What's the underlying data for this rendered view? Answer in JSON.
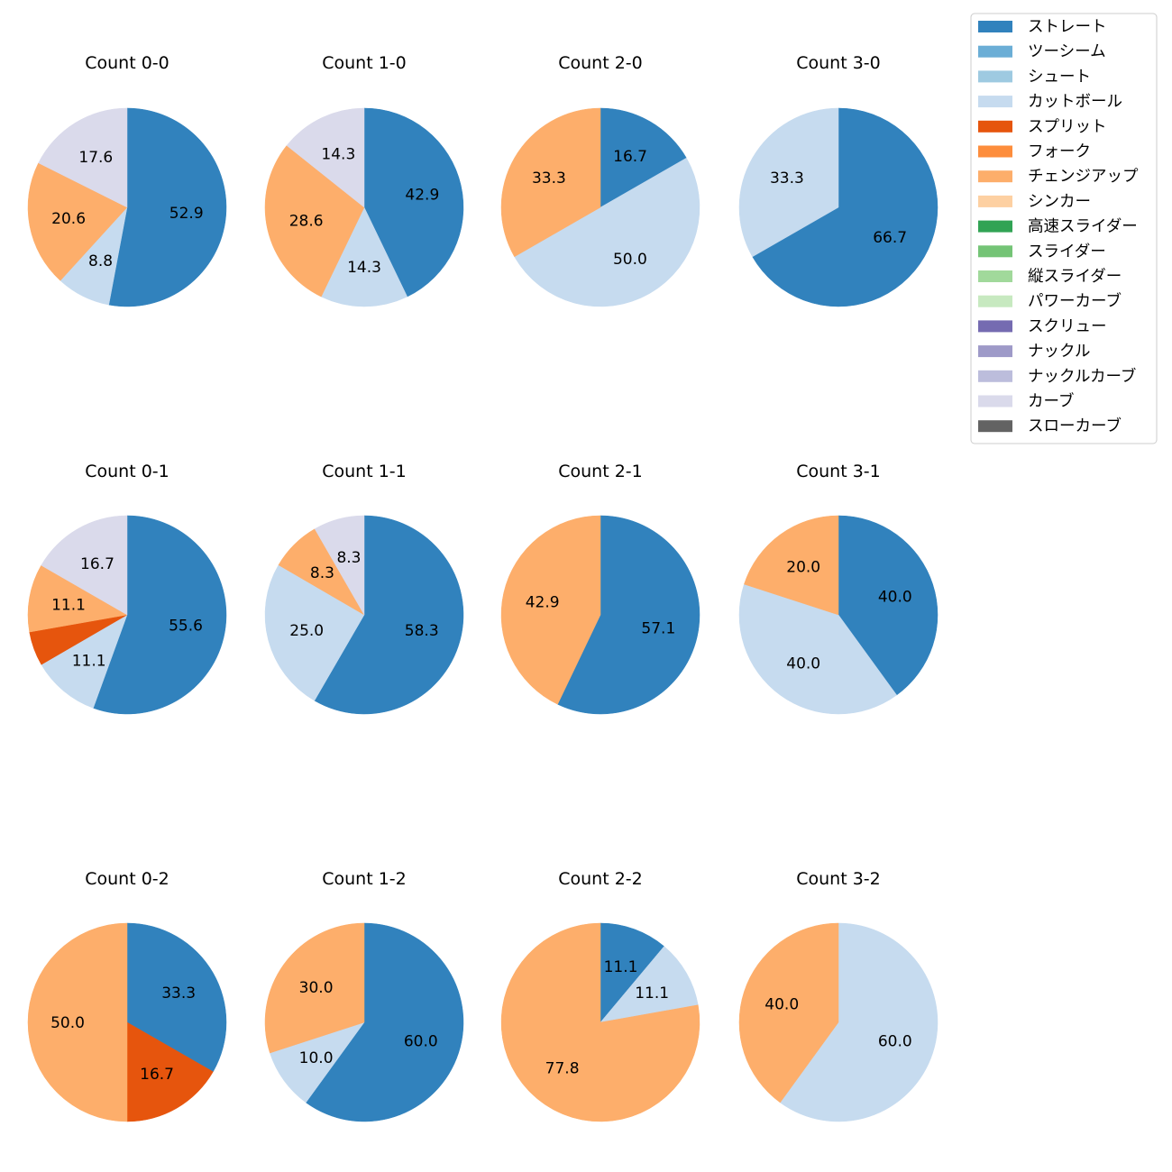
{
  "pitch_types": [
    {
      "name": "ストレート",
      "color": "#3182bd"
    },
    {
      "name": "ツーシーム",
      "color": "#6baed6"
    },
    {
      "name": "シュート",
      "color": "#9ecae1"
    },
    {
      "name": "カットボール",
      "color": "#c6dbef"
    },
    {
      "name": "スプリット",
      "color": "#e6550d"
    },
    {
      "name": "フォーク",
      "color": "#fd8d3c"
    },
    {
      "name": "チェンジアップ",
      "color": "#fdae6b"
    },
    {
      "name": "シンカー",
      "color": "#fdd0a2"
    },
    {
      "name": "高速スライダー",
      "color": "#31a354"
    },
    {
      "name": "スライダー",
      "color": "#74c476"
    },
    {
      "name": "縦スライダー",
      "color": "#a1d99b"
    },
    {
      "name": "パワーカーブ",
      "color": "#c7e9c0"
    },
    {
      "name": "スクリュー",
      "color": "#756bb1"
    },
    {
      "name": "ナックル",
      "color": "#9e9ac8"
    },
    {
      "name": "ナックルカーブ",
      "color": "#bcbddc"
    },
    {
      "name": "カーブ",
      "color": "#dadaeb"
    },
    {
      "name": "スローカーブ",
      "color": "#636363"
    }
  ],
  "chart_data": [
    {
      "type": "pie",
      "title": "Count 0-0",
      "slices": [
        {
          "pitch": "ストレート",
          "value": 52.9
        },
        {
          "pitch": "カットボール",
          "value": 8.8
        },
        {
          "pitch": "チェンジアップ",
          "value": 20.6
        },
        {
          "pitch": "カーブ",
          "value": 17.6
        }
      ]
    },
    {
      "type": "pie",
      "title": "Count 1-0",
      "slices": [
        {
          "pitch": "ストレート",
          "value": 42.9
        },
        {
          "pitch": "カットボール",
          "value": 14.3
        },
        {
          "pitch": "チェンジアップ",
          "value": 28.6
        },
        {
          "pitch": "カーブ",
          "value": 14.3
        }
      ]
    },
    {
      "type": "pie",
      "title": "Count 2-0",
      "slices": [
        {
          "pitch": "ストレート",
          "value": 16.7
        },
        {
          "pitch": "カットボール",
          "value": 50.0
        },
        {
          "pitch": "チェンジアップ",
          "value": 33.3
        }
      ]
    },
    {
      "type": "pie",
      "title": "Count 3-0",
      "slices": [
        {
          "pitch": "ストレート",
          "value": 66.7
        },
        {
          "pitch": "カットボール",
          "value": 33.3
        }
      ]
    },
    {
      "type": "pie",
      "title": "Count 0-1",
      "slices": [
        {
          "pitch": "ストレート",
          "value": 55.6
        },
        {
          "pitch": "カットボール",
          "value": 11.1
        },
        {
          "pitch": "スプリット",
          "value": 5.6,
          "label": ""
        },
        {
          "pitch": "チェンジアップ",
          "value": 11.1
        },
        {
          "pitch": "カーブ",
          "value": 16.7
        }
      ]
    },
    {
      "type": "pie",
      "title": "Count 1-1",
      "slices": [
        {
          "pitch": "ストレート",
          "value": 58.3
        },
        {
          "pitch": "カットボール",
          "value": 25.0
        },
        {
          "pitch": "チェンジアップ",
          "value": 8.3
        },
        {
          "pitch": "カーブ",
          "value": 8.3
        }
      ]
    },
    {
      "type": "pie",
      "title": "Count 2-1",
      "slices": [
        {
          "pitch": "ストレート",
          "value": 57.1
        },
        {
          "pitch": "チェンジアップ",
          "value": 42.9
        }
      ]
    },
    {
      "type": "pie",
      "title": "Count 3-1",
      "slices": [
        {
          "pitch": "ストレート",
          "value": 40.0
        },
        {
          "pitch": "カットボール",
          "value": 40.0
        },
        {
          "pitch": "チェンジアップ",
          "value": 20.0
        }
      ]
    },
    {
      "type": "pie",
      "title": "Count 0-2",
      "slices": [
        {
          "pitch": "ストレート",
          "value": 33.3
        },
        {
          "pitch": "スプリット",
          "value": 16.7
        },
        {
          "pitch": "チェンジアップ",
          "value": 50.0
        }
      ]
    },
    {
      "type": "pie",
      "title": "Count 1-2",
      "slices": [
        {
          "pitch": "ストレート",
          "value": 60.0
        },
        {
          "pitch": "カットボール",
          "value": 10.0
        },
        {
          "pitch": "チェンジアップ",
          "value": 30.0
        }
      ]
    },
    {
      "type": "pie",
      "title": "Count 2-2",
      "slices": [
        {
          "pitch": "ストレート",
          "value": 11.1
        },
        {
          "pitch": "カットボール",
          "value": 11.1
        },
        {
          "pitch": "チェンジアップ",
          "value": 77.8
        }
      ]
    },
    {
      "type": "pie",
      "title": "Count 3-2",
      "slices": [
        {
          "pitch": "カットボール",
          "value": 60.0
        },
        {
          "pitch": "チェンジアップ",
          "value": 40.0
        }
      ]
    }
  ]
}
